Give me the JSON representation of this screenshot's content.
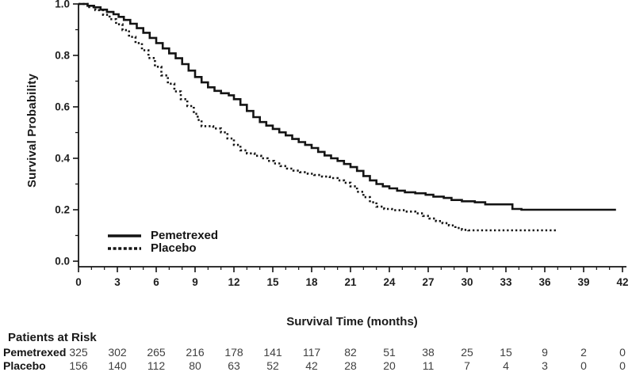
{
  "chart_data": {
    "type": "line",
    "subtype": "kaplan-meier-step",
    "title": "",
    "xlabel": "Survival Time (months)",
    "ylabel": "Survival Probability",
    "xlim": [
      0,
      42
    ],
    "ylim": [
      0.0,
      1.0
    ],
    "grid": false,
    "x_tick_values": [
      0,
      3,
      6,
      9,
      12,
      15,
      18,
      21,
      24,
      27,
      30,
      33,
      36,
      39,
      42
    ],
    "x_tick_labels": [
      "0",
      "3",
      "6",
      "9",
      "12",
      "15",
      "18",
      "21",
      "24",
      "27",
      "30",
      "33",
      "36",
      "39",
      "42"
    ],
    "y_tick_values": [
      0.0,
      0.2,
      0.4,
      0.6,
      0.8,
      1.0
    ],
    "y_tick_labels": [
      "0.0",
      "0.2",
      "0.4",
      "0.6",
      "0.8",
      "1.0"
    ],
    "x_minor_tick_interval": 1,
    "y_minor_tick_interval": 0.1,
    "line_color": "#141414",
    "legend": {
      "position": "inside-lower-left",
      "entries": [
        {
          "label": "Pemetrexed",
          "line_style": "solid"
        },
        {
          "label": "Placebo",
          "line_style": "dotted"
        }
      ]
    },
    "series": [
      {
        "name": "Pemetrexed",
        "line_style": "solid",
        "points": [
          [
            0,
            1.0
          ],
          [
            0.7,
            0.993
          ],
          [
            1.2,
            0.987
          ],
          [
            1.7,
            0.978
          ],
          [
            2.2,
            0.969
          ],
          [
            2.7,
            0.96
          ],
          [
            3.1,
            0.95
          ],
          [
            3.5,
            0.938
          ],
          [
            4.0,
            0.923
          ],
          [
            4.5,
            0.906
          ],
          [
            5.0,
            0.888
          ],
          [
            5.5,
            0.868
          ],
          [
            6.0,
            0.848
          ],
          [
            6.5,
            0.827
          ],
          [
            7.0,
            0.808
          ],
          [
            7.5,
            0.789
          ],
          [
            8.0,
            0.766
          ],
          [
            8.5,
            0.741
          ],
          [
            9.0,
            0.716
          ],
          [
            9.5,
            0.695
          ],
          [
            10.0,
            0.676
          ],
          [
            10.5,
            0.662
          ],
          [
            11.0,
            0.653
          ],
          [
            11.6,
            0.645
          ],
          [
            12.0,
            0.63
          ],
          [
            12.5,
            0.608
          ],
          [
            13.0,
            0.584
          ],
          [
            13.5,
            0.56
          ],
          [
            14.0,
            0.541
          ],
          [
            14.5,
            0.527
          ],
          [
            15.0,
            0.514
          ],
          [
            15.5,
            0.501
          ],
          [
            16.0,
            0.489
          ],
          [
            16.5,
            0.475
          ],
          [
            17.0,
            0.463
          ],
          [
            17.5,
            0.452
          ],
          [
            18.0,
            0.44
          ],
          [
            18.5,
            0.425
          ],
          [
            19.0,
            0.411
          ],
          [
            19.5,
            0.4
          ],
          [
            20.0,
            0.39
          ],
          [
            20.5,
            0.378
          ],
          [
            21.0,
            0.366
          ],
          [
            21.5,
            0.351
          ],
          [
            22.0,
            0.331
          ],
          [
            22.5,
            0.314
          ],
          [
            23.0,
            0.3
          ],
          [
            23.5,
            0.291
          ],
          [
            24.0,
            0.283
          ],
          [
            24.6,
            0.274
          ],
          [
            25.2,
            0.268
          ],
          [
            26.0,
            0.264
          ],
          [
            26.8,
            0.258
          ],
          [
            27.4,
            0.251
          ],
          [
            28.2,
            0.246
          ],
          [
            28.8,
            0.238
          ],
          [
            29.6,
            0.233
          ],
          [
            30.6,
            0.229
          ],
          [
            31.4,
            0.221
          ],
          [
            33.5,
            0.203
          ],
          [
            34.2,
            0.2
          ],
          [
            41.5,
            0.2
          ]
        ]
      },
      {
        "name": "Placebo",
        "line_style": "dotted",
        "points": [
          [
            0,
            1.0
          ],
          [
            0.7,
            0.988
          ],
          [
            1.3,
            0.976
          ],
          [
            1.9,
            0.958
          ],
          [
            2.4,
            0.941
          ],
          [
            2.9,
            0.921
          ],
          [
            3.4,
            0.898
          ],
          [
            3.9,
            0.872
          ],
          [
            4.4,
            0.848
          ],
          [
            4.9,
            0.82
          ],
          [
            5.4,
            0.79
          ],
          [
            5.9,
            0.756
          ],
          [
            6.4,
            0.722
          ],
          [
            6.9,
            0.69
          ],
          [
            7.4,
            0.66
          ],
          [
            7.9,
            0.63
          ],
          [
            8.4,
            0.603
          ],
          [
            8.9,
            0.573
          ],
          [
            9.2,
            0.549
          ],
          [
            9.5,
            0.525
          ],
          [
            10.4,
            0.516
          ],
          [
            11.0,
            0.501
          ],
          [
            11.5,
            0.477
          ],
          [
            12.0,
            0.452
          ],
          [
            12.5,
            0.431
          ],
          [
            13.0,
            0.419
          ],
          [
            13.6,
            0.41
          ],
          [
            14.1,
            0.4
          ],
          [
            14.6,
            0.39
          ],
          [
            15.1,
            0.38
          ],
          [
            15.6,
            0.37
          ],
          [
            16.1,
            0.36
          ],
          [
            16.6,
            0.352
          ],
          [
            17.1,
            0.346
          ],
          [
            17.7,
            0.34
          ],
          [
            18.2,
            0.335
          ],
          [
            18.8,
            0.329
          ],
          [
            19.4,
            0.323
          ],
          [
            20.0,
            0.314
          ],
          [
            20.5,
            0.305
          ],
          [
            21.0,
            0.291
          ],
          [
            21.5,
            0.27
          ],
          [
            22.0,
            0.249
          ],
          [
            22.5,
            0.229
          ],
          [
            23.0,
            0.212
          ],
          [
            23.6,
            0.203
          ],
          [
            24.2,
            0.198
          ],
          [
            25.2,
            0.193
          ],
          [
            26.0,
            0.186
          ],
          [
            26.6,
            0.176
          ],
          [
            27.1,
            0.166
          ],
          [
            27.6,
            0.156
          ],
          [
            28.1,
            0.148
          ],
          [
            28.6,
            0.139
          ],
          [
            29.1,
            0.129
          ],
          [
            29.6,
            0.122
          ],
          [
            30.1,
            0.12
          ],
          [
            37.0,
            0.12
          ]
        ]
      }
    ],
    "at_risk_table": {
      "title": "Patients at Risk",
      "time_points": [
        0,
        3,
        6,
        9,
        12,
        15,
        18,
        21,
        24,
        27,
        30,
        33,
        36,
        39,
        42
      ],
      "rows": [
        {
          "label": "Pemetrexed",
          "values": [
            325,
            302,
            265,
            216,
            178,
            141,
            117,
            82,
            51,
            38,
            25,
            15,
            9,
            2,
            0
          ]
        },
        {
          "label": "Placebo",
          "values": [
            156,
            140,
            112,
            80,
            63,
            52,
            42,
            28,
            20,
            11,
            7,
            4,
            3,
            0,
            0
          ]
        }
      ]
    }
  }
}
